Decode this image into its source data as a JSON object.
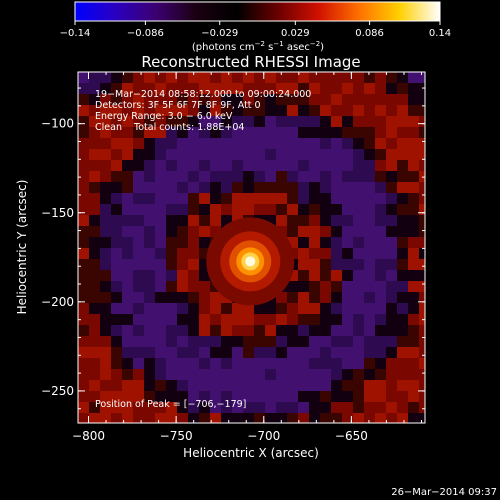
{
  "colorbar": {
    "ticks": [
      {
        "v": -0.14,
        "label": "−0.14"
      },
      {
        "v": -0.086,
        "label": "−0.086"
      },
      {
        "v": -0.029,
        "label": "−0.029"
      },
      {
        "v": 0.029,
        "label": "0.029"
      },
      {
        "v": 0.086,
        "label": "0.086"
      },
      {
        "v": 0.14,
        "label": "0.14"
      }
    ],
    "units_prefix": "(photons cm",
    "units_exp1": "−2",
    "units_mid1": " s",
    "units_exp2": "−1",
    "units_mid2": " asec",
    "units_exp3": "−2",
    "units_suffix": ")",
    "stops": [
      "#0000ff",
      "#2a00c0",
      "#3c0070",
      "#1a0010",
      "#000000",
      "#6a0000",
      "#d01000",
      "#ff7000",
      "#ffd000",
      "#ffffff"
    ]
  },
  "title": "Reconstructed RHESSI Image",
  "info": {
    "line1": "19−Mar−2014 08:58:12.000 to 09:00:24.000",
    "line2": "Detectors: 3F 5F 6F 7F 8F 9F, Att 0",
    "line3": "Energy Range: 3.0 − 6.0 keV",
    "line4": "Clean    Total counts: 1.88E+04"
  },
  "peak_label": "Position of Peak = [−706,−179]",
  "footer_timestamp": "26−Mar−2014 09:37",
  "chart_data": {
    "type": "heatmap",
    "title": "Reconstructed RHESSI Image",
    "xlabel": "Heliocentric X (arcsec)",
    "ylabel": "Heliocentric Y (arcsec)",
    "xlim": [
      -806,
      -608
    ],
    "ylim": [
      -268,
      -71
    ],
    "color_range": [
      -0.14,
      0.14
    ],
    "peak": {
      "x": -706,
      "y": -179
    },
    "x_ticks": [
      {
        "v": -800,
        "label": "−800"
      },
      {
        "v": -750,
        "label": "−750"
      },
      {
        "v": -700,
        "label": "−700"
      },
      {
        "v": -650,
        "label": "−650"
      }
    ],
    "y_ticks": [
      {
        "v": -100,
        "label": "−100"
      },
      {
        "v": -150,
        "label": "−150"
      },
      {
        "v": -200,
        "label": "−200"
      },
      {
        "v": -250,
        "label": "−250"
      }
    ]
  }
}
